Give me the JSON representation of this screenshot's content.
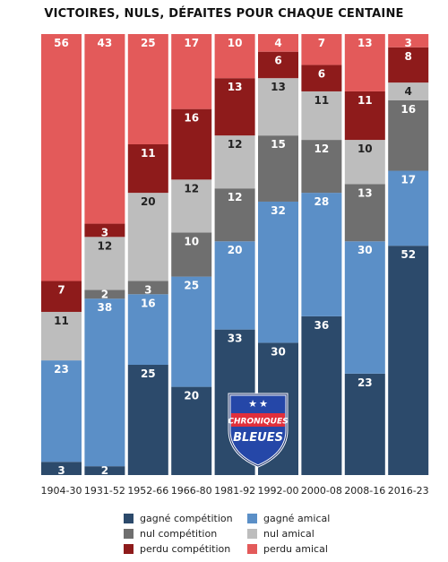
{
  "title": "VICTOIRES, NULS, DÉFAITES POUR CHAQUE CENTAINE",
  "logo": {
    "line1": "CHRONIQUES",
    "line2": "BLEUES"
  },
  "chart_data": {
    "type": "bar",
    "stacked": true,
    "categories": [
      "1904-30",
      "1931-52",
      "1952-66",
      "1966-80",
      "1981-92",
      "1992-00",
      "2000-08",
      "2008-16",
      "2016-23"
    ],
    "ylim": [
      0,
      100
    ],
    "series": [
      {
        "name": "gagné compétition",
        "color": "#2c4a6b",
        "values": [
          3,
          2,
          25,
          20,
          33,
          30,
          36,
          23,
          52
        ]
      },
      {
        "name": "gagné amical",
        "color": "#5b8fc7",
        "values": [
          23,
          38,
          16,
          25,
          20,
          32,
          28,
          30,
          17
        ]
      },
      {
        "name": "nul compétition",
        "color": "#6f6f6f",
        "values": [
          0,
          2,
          3,
          10,
          12,
          15,
          12,
          13,
          16
        ]
      },
      {
        "name": "nul amical",
        "color": "#bdbdbd",
        "values": [
          11,
          12,
          20,
          12,
          12,
          13,
          11,
          10,
          4
        ]
      },
      {
        "name": "perdu compétition",
        "color": "#8e1b1b",
        "values": [
          7,
          3,
          11,
          16,
          13,
          6,
          6,
          11,
          8
        ]
      },
      {
        "name": "perdu amical",
        "color": "#e35a5a",
        "values": [
          56,
          43,
          25,
          17,
          10,
          4,
          7,
          13,
          3
        ]
      }
    ],
    "legend_order": [
      "gagné compétition",
      "gagné amical",
      "nul compétition",
      "nul amical",
      "perdu compétition",
      "perdu amical"
    ]
  }
}
